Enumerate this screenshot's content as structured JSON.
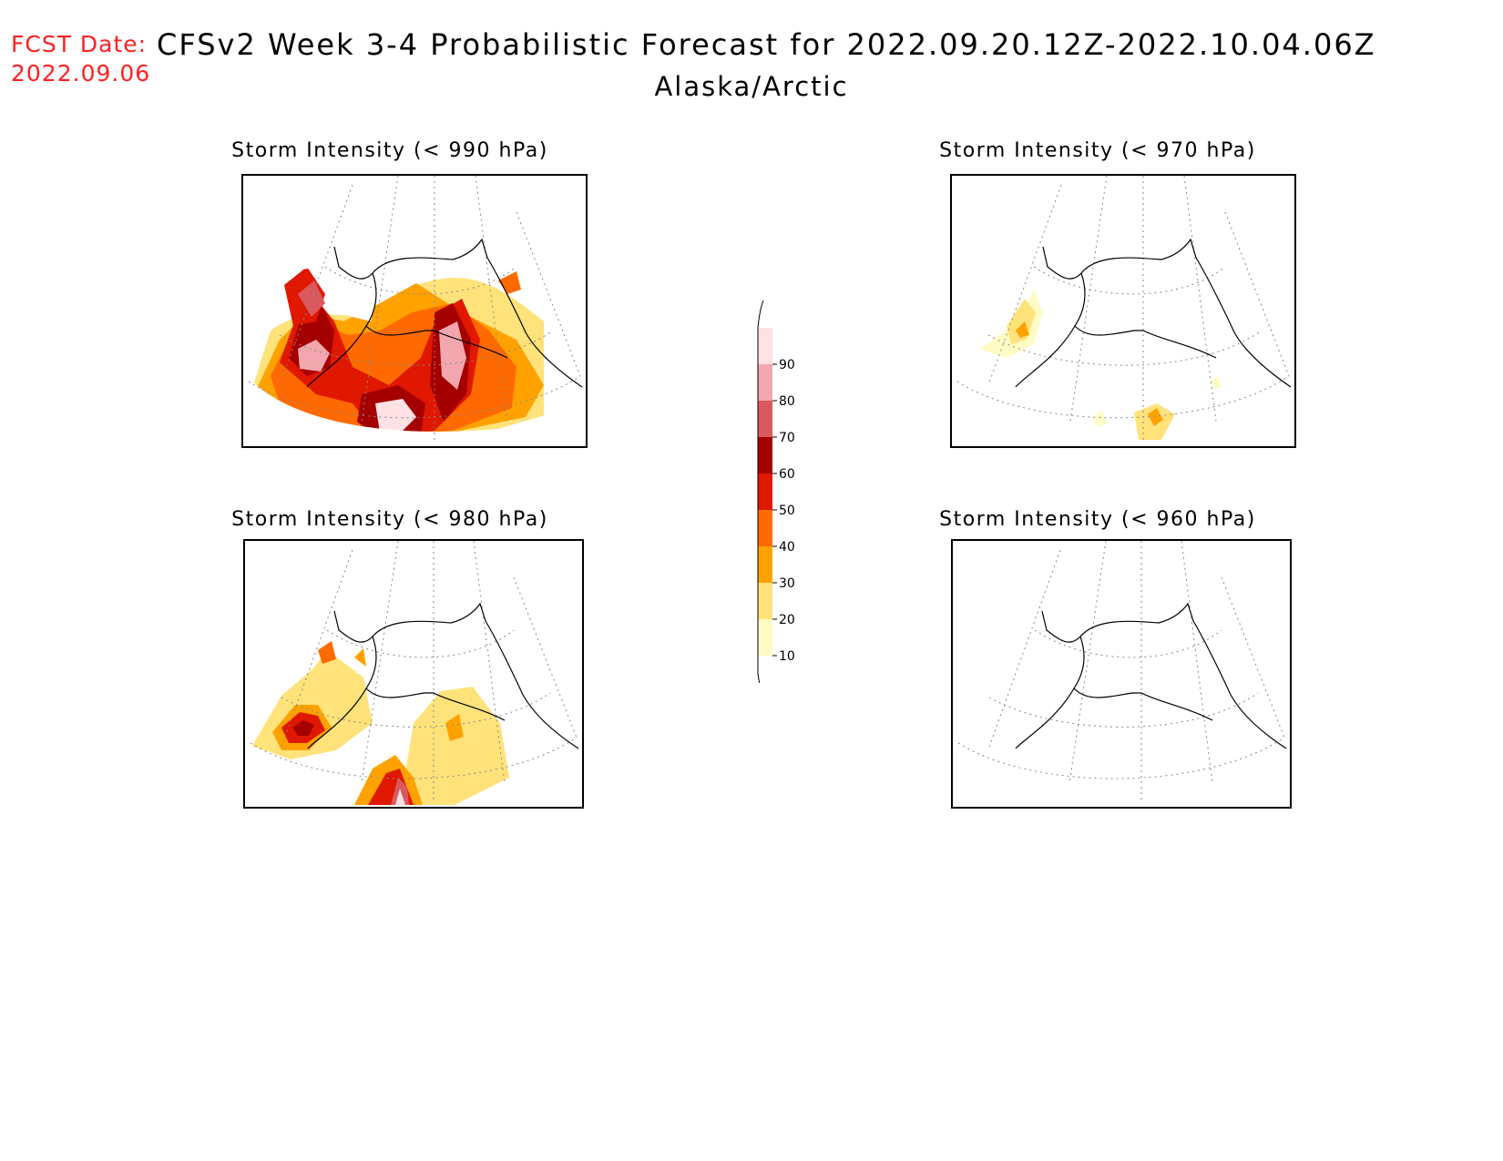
{
  "header": {
    "fcst_label": "FCST Date:",
    "fcst_date": "2022.09.06",
    "title": "CFSv2 Week 3-4 Probabilistic Forecast for 2022.09.20.12Z-2022.10.04.06Z",
    "subtitle": "Alaska/Arctic"
  },
  "panels": [
    {
      "title": "Storm Intensity (< 990 hPa)",
      "threshold_hPa": 990,
      "coverage": "high"
    },
    {
      "title": "Storm Intensity (< 970 hPa)",
      "threshold_hPa": 970,
      "coverage": "low"
    },
    {
      "title": "Storm Intensity (< 980 hPa)",
      "threshold_hPa": 980,
      "coverage": "medium"
    },
    {
      "title": "Storm Intensity (< 960 hPa)",
      "threshold_hPa": 960,
      "coverage": "none"
    }
  ],
  "legend": {
    "levels": [
      "10",
      "20",
      "30",
      "40",
      "50",
      "60",
      "70",
      "80",
      "90"
    ],
    "colors": [
      "#fffbc4",
      "#ffe27a",
      "#ffa200",
      "#ff6a00",
      "#e01800",
      "#a50000",
      "#d9595f",
      "#f2a7ae",
      "#ffe0e4"
    ]
  }
}
